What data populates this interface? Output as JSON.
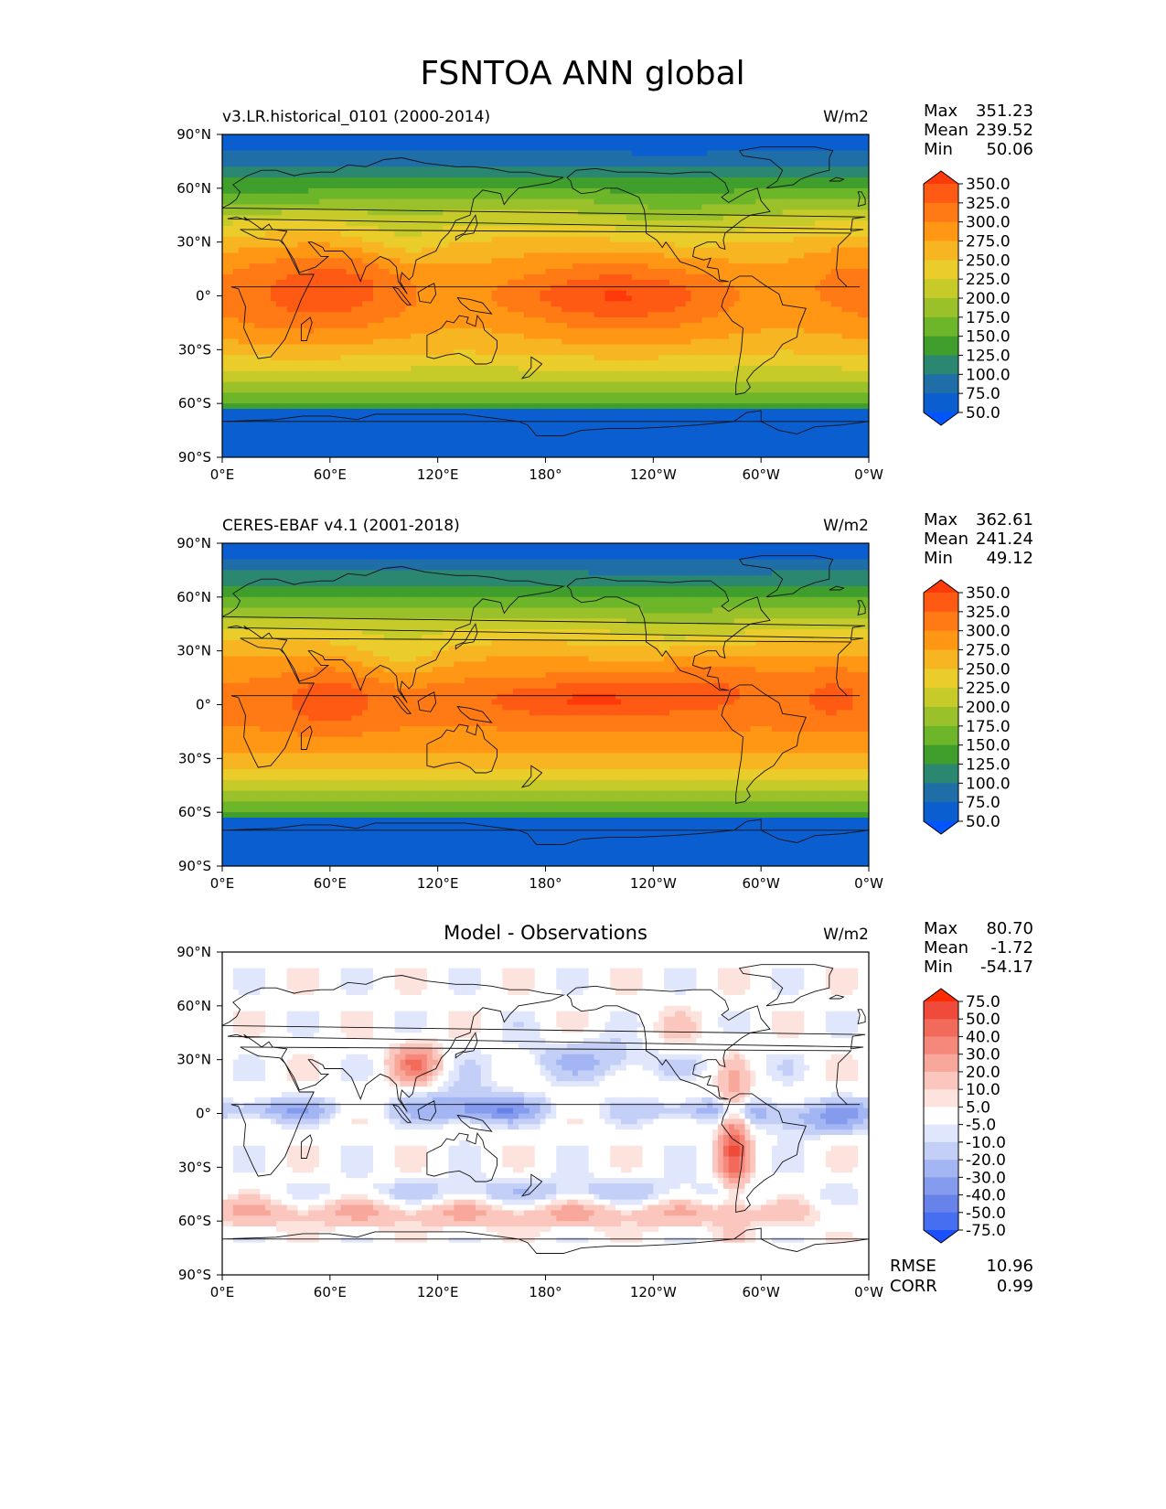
{
  "figure": {
    "title": "FSNTOA ANN global"
  },
  "stat_labels": {
    "max": "Max",
    "mean": "Mean",
    "min": "Min",
    "rmse": "RMSE",
    "corr": "CORR"
  },
  "chart_data": [
    {
      "type": "heatmap",
      "id": "model",
      "left_title": "v3.LR.historical_0101 (2000-2014)",
      "center_title": "",
      "units": "W/m2",
      "stats": {
        "max": "351.23",
        "mean": "239.52",
        "min": "50.06"
      },
      "xticks": [
        "0°E",
        "60°E",
        "120°E",
        "180°",
        "120°W",
        "60°W",
        "0°W"
      ],
      "yticks": [
        "90°N",
        "60°N",
        "30°N",
        "0°",
        "30°S",
        "60°S",
        "90°S"
      ],
      "xlim": [
        0,
        360
      ],
      "ylim": [
        -90,
        90
      ],
      "colorbar": {
        "levels": [
          "350.0",
          "325.0",
          "300.0",
          "275.0",
          "250.0",
          "225.0",
          "200.0",
          "175.0",
          "150.0",
          "125.0",
          "100.0",
          "75.0",
          "50.0"
        ],
        "colors": [
          "#ff3a0a",
          "#ff5a14",
          "#ff7a14",
          "#ff9614",
          "#f7b522",
          "#eacd2a",
          "#c6cb2a",
          "#9bc12a",
          "#6db62a",
          "#3f9e2c",
          "#2b8770",
          "#1f6ea8",
          "#0a5ed0",
          "#0055ff"
        ]
      },
      "field": "fsntoa_model"
    },
    {
      "type": "heatmap",
      "id": "obs",
      "left_title": "CERES-EBAF v4.1 (2001-2018)",
      "center_title": "",
      "units": "W/m2",
      "stats": {
        "max": "362.61",
        "mean": "241.24",
        "min": "49.12"
      },
      "xticks": [
        "0°E",
        "60°E",
        "120°E",
        "180°",
        "120°W",
        "60°W",
        "0°W"
      ],
      "yticks": [
        "90°N",
        "60°N",
        "30°N",
        "0°",
        "30°S",
        "60°S",
        "90°S"
      ],
      "xlim": [
        0,
        360
      ],
      "ylim": [
        -90,
        90
      ],
      "colorbar": {
        "levels": [
          "350.0",
          "325.0",
          "300.0",
          "275.0",
          "250.0",
          "225.0",
          "200.0",
          "175.0",
          "150.0",
          "125.0",
          "100.0",
          "75.0",
          "50.0"
        ],
        "colors": [
          "#ff3a0a",
          "#ff5a14",
          "#ff7a14",
          "#ff9614",
          "#f7b522",
          "#eacd2a",
          "#c6cb2a",
          "#9bc12a",
          "#6db62a",
          "#3f9e2c",
          "#2b8770",
          "#1f6ea8",
          "#0a5ed0",
          "#0055ff"
        ]
      },
      "field": "fsntoa_obs"
    },
    {
      "type": "heatmap",
      "id": "diff",
      "left_title": "",
      "center_title": "Model - Observations",
      "units": "W/m2",
      "stats": {
        "max": "80.70",
        "mean": "-1.72",
        "min": "-54.17"
      },
      "rmse": "10.96",
      "corr": "0.99",
      "xticks": [
        "0°E",
        "60°E",
        "120°E",
        "180°",
        "120°W",
        "60°W",
        "0°W"
      ],
      "yticks": [
        "90°N",
        "60°N",
        "30°N",
        "0°",
        "30°S",
        "60°S",
        "90°S"
      ],
      "xlim": [
        0,
        360
      ],
      "ylim": [
        -90,
        90
      ],
      "colorbar": {
        "levels": [
          "75.0",
          "50.0",
          "40.0",
          "30.0",
          "20.0",
          "10.0",
          "5.0",
          "-5.0",
          "-10.0",
          "-20.0",
          "-30.0",
          "-40.0",
          "-50.0",
          "-75.0"
        ],
        "colors": [
          "#ff2a00",
          "#f04a3a",
          "#f26a5a",
          "#f5887a",
          "#f8a79b",
          "#fbc6bd",
          "#fde3de",
          "#ffffff",
          "#e0e6fb",
          "#c3cff7",
          "#a3b5f2",
          "#859cee",
          "#6783ea",
          "#456ef0",
          "#1a50ff"
        ]
      },
      "field": "fsntoa_diff"
    }
  ]
}
